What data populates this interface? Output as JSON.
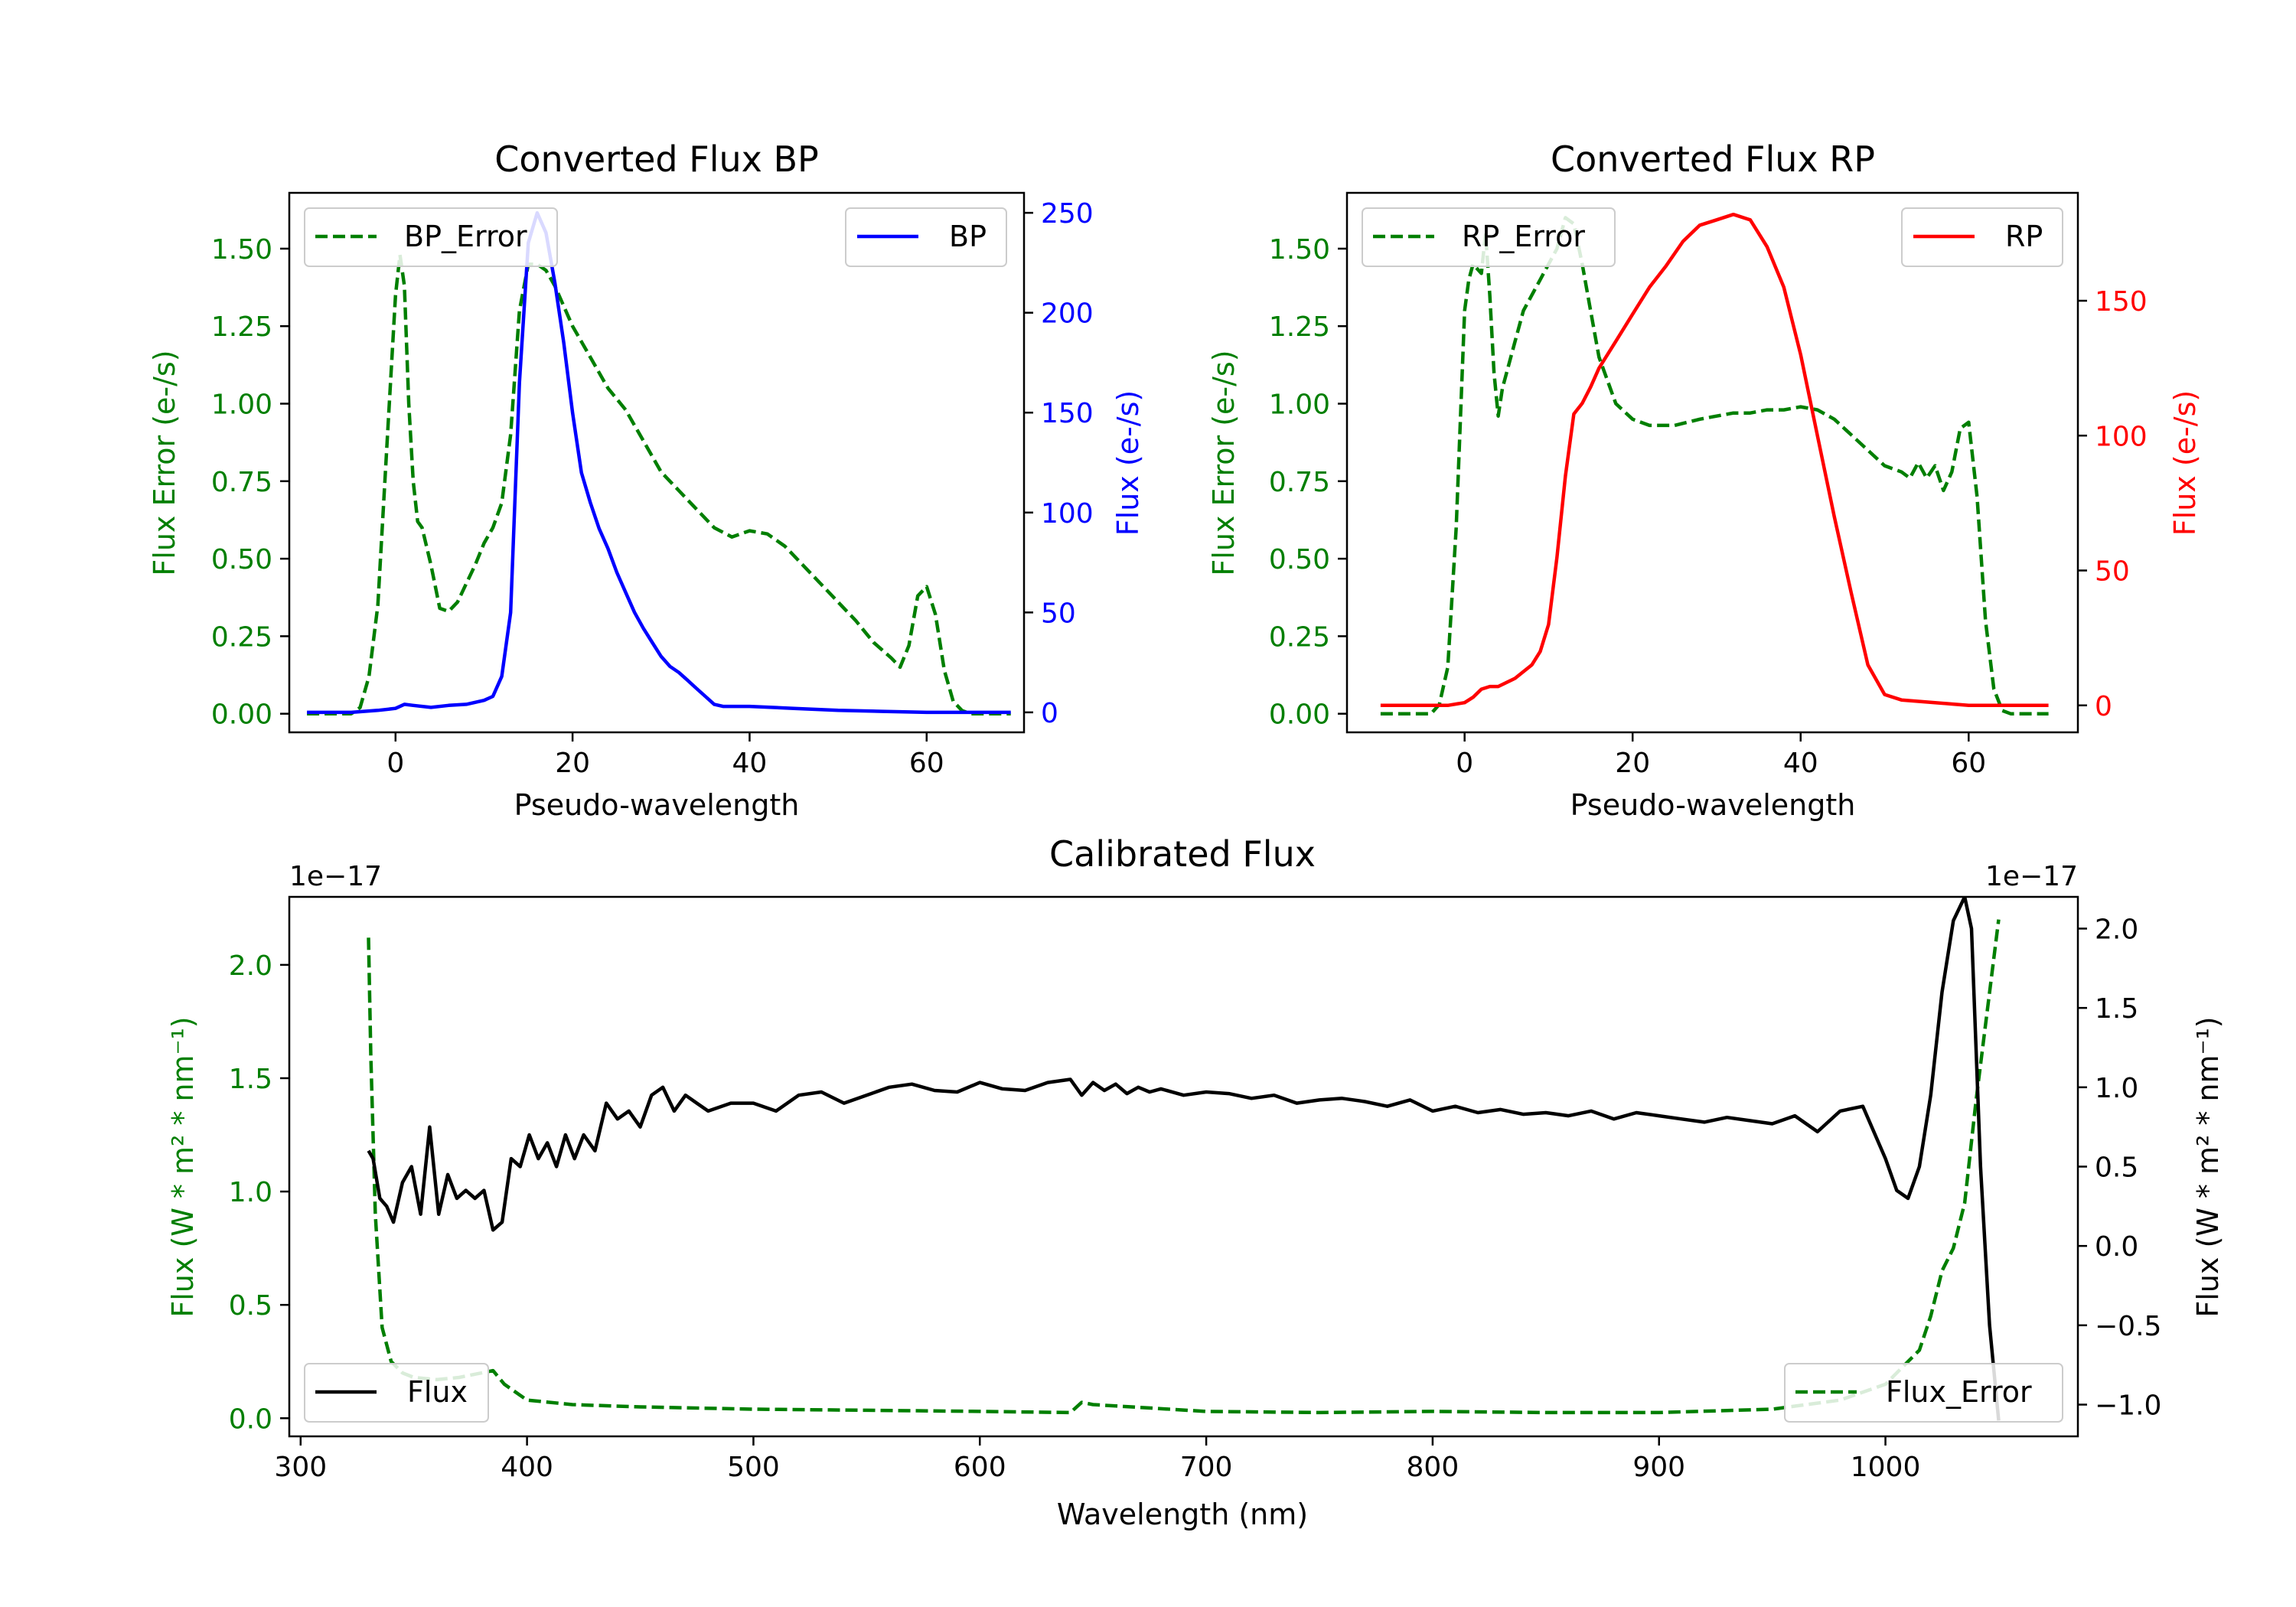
{
  "colors": {
    "green": "#007f00",
    "blue": "#0000ff",
    "red": "#ff0000",
    "black": "#000000"
  },
  "chart_data": [
    {
      "id": "bp",
      "type": "line",
      "title": "Converted Flux BP",
      "xlabel": "Pseudo-wavelength",
      "ylabel_left": "Flux Error (e-/s)",
      "ylabel_right": "Flux (e-/s)",
      "xlim": [
        -12,
        71
      ],
      "xticks": [
        0,
        20,
        40,
        60
      ],
      "ylim_left": [
        -0.06,
        1.68
      ],
      "yticks_left": [
        0.0,
        0.25,
        0.5,
        0.75,
        1.0,
        1.25,
        1.5
      ],
      "ytick_labels_left": [
        "0.00",
        "0.25",
        "0.50",
        "0.75",
        "1.00",
        "1.25",
        "1.50"
      ],
      "ylim_right": [
        -10,
        260
      ],
      "yticks_right": [
        0,
        50,
        100,
        150,
        200,
        250
      ],
      "ytick_labels_right": [
        "0",
        "50",
        "100",
        "150",
        "200",
        "250"
      ],
      "right_color": "blue",
      "legend_left": "BP_Error",
      "legend_right": "BP",
      "series": [
        {
          "name": "BP_Error",
          "axis": "left",
          "color": "green",
          "dash": true,
          "x": [
            -10,
            -5,
            -4,
            -3,
            -2,
            -1,
            0,
            0.5,
            1,
            1.5,
            2,
            2.5,
            3,
            4,
            5,
            6,
            7,
            8,
            9,
            10,
            11,
            12,
            13,
            14,
            15,
            16,
            17,
            18,
            20,
            22,
            24,
            26,
            28,
            30,
            32,
            34,
            36,
            38,
            40,
            42,
            44,
            46,
            48,
            50,
            52,
            54,
            56,
            57,
            58,
            59,
            60,
            61,
            62,
            63,
            64,
            65,
            67,
            69.5
          ],
          "y": [
            0.0,
            0.0,
            0.02,
            0.12,
            0.35,
            0.85,
            1.35,
            1.48,
            1.38,
            1.0,
            0.75,
            0.62,
            0.6,
            0.48,
            0.34,
            0.33,
            0.36,
            0.42,
            0.48,
            0.55,
            0.6,
            0.68,
            0.9,
            1.3,
            1.45,
            1.45,
            1.43,
            1.38,
            1.25,
            1.15,
            1.05,
            0.98,
            0.88,
            0.78,
            0.72,
            0.66,
            0.6,
            0.57,
            0.59,
            0.58,
            0.54,
            0.48,
            0.42,
            0.36,
            0.3,
            0.23,
            0.18,
            0.15,
            0.22,
            0.38,
            0.41,
            0.32,
            0.14,
            0.04,
            0.01,
            0.0,
            0.0,
            0.0
          ]
        },
        {
          "name": "BP",
          "axis": "right",
          "color": "blue",
          "dash": false,
          "x": [
            -10,
            -5,
            -2,
            0,
            1,
            2,
            4,
            6,
            8,
            10,
            11,
            12,
            13,
            14,
            15,
            16,
            17,
            18,
            19,
            20,
            21,
            22,
            23,
            24,
            25,
            26,
            27,
            28,
            29,
            30,
            31,
            32,
            33,
            34,
            35,
            36,
            37,
            40,
            45,
            50,
            55,
            60,
            65,
            69.5
          ],
          "y": [
            0,
            0,
            1,
            2,
            4,
            3.5,
            2.5,
            3.5,
            4,
            6,
            8,
            18,
            50,
            165,
            235,
            250,
            240,
            215,
            185,
            150,
            120,
            105,
            92,
            82,
            70,
            60,
            50,
            42,
            35,
            28,
            23,
            20,
            16,
            12,
            8,
            4,
            3,
            3,
            2,
            1,
            0.5,
            0,
            0,
            0
          ]
        }
      ]
    },
    {
      "id": "rp",
      "type": "line",
      "title": "Converted Flux RP",
      "xlabel": "Pseudo-wavelength",
      "ylabel_left": "Flux Error (e-/s)",
      "ylabel_right": "Flux (e-/s)",
      "xlim": [
        -14,
        73
      ],
      "xticks": [
        0,
        20,
        40,
        60
      ],
      "ylim_left": [
        -0.06,
        1.68
      ],
      "yticks_left": [
        0.0,
        0.25,
        0.5,
        0.75,
        1.0,
        1.25,
        1.5
      ],
      "ytick_labels_left": [
        "0.00",
        "0.25",
        "0.50",
        "0.75",
        "1.00",
        "1.25",
        "1.50"
      ],
      "ylim_right": [
        -10,
        190
      ],
      "yticks_right": [
        0,
        50,
        100,
        150
      ],
      "ytick_labels_right": [
        "0",
        "50",
        "100",
        "150"
      ],
      "right_color": "red",
      "legend_left": "RP_Error",
      "legend_right": "RP",
      "series": [
        {
          "name": "RP_Error",
          "axis": "left",
          "color": "green",
          "dash": true,
          "x": [
            -10,
            -4,
            -3,
            -2,
            -1,
            0,
            0.5,
            1,
            2,
            2.5,
            3,
            3.5,
            4,
            4.5,
            5,
            6,
            7,
            8,
            9,
            10,
            11,
            12,
            13,
            14,
            15,
            16,
            18,
            20,
            22,
            25,
            28,
            30,
            32,
            34,
            36,
            38,
            40,
            42,
            44,
            46,
            48,
            50,
            52,
            53,
            54,
            55,
            56,
            57,
            58,
            59,
            60,
            61,
            62,
            63,
            64,
            65,
            67,
            69.5
          ],
          "y": [
            0.0,
            0.0,
            0.03,
            0.15,
            0.6,
            1.3,
            1.4,
            1.45,
            1.42,
            1.55,
            1.35,
            1.1,
            0.96,
            1.05,
            1.1,
            1.2,
            1.3,
            1.35,
            1.4,
            1.45,
            1.5,
            1.6,
            1.58,
            1.45,
            1.3,
            1.15,
            1.0,
            0.95,
            0.93,
            0.93,
            0.95,
            0.96,
            0.97,
            0.97,
            0.98,
            0.98,
            0.99,
            0.98,
            0.95,
            0.9,
            0.85,
            0.8,
            0.78,
            0.76,
            0.81,
            0.76,
            0.8,
            0.72,
            0.78,
            0.92,
            0.94,
            0.7,
            0.3,
            0.08,
            0.01,
            0.0,
            0.0,
            0.0
          ]
        },
        {
          "name": "RP",
          "axis": "right",
          "color": "red",
          "dash": false,
          "x": [
            -10,
            -5,
            -2,
            0,
            1,
            2,
            3,
            4,
            6,
            8,
            9,
            10,
            11,
            12,
            13,
            14,
            15,
            16,
            18,
            20,
            22,
            24,
            26,
            28,
            30,
            32,
            34,
            36,
            38,
            40,
            42,
            44,
            46,
            48,
            50,
            52,
            54,
            56,
            58,
            60,
            62,
            65,
            69.5
          ],
          "y": [
            0,
            0,
            0,
            1,
            3,
            6,
            7,
            7,
            10,
            15,
            20,
            30,
            55,
            85,
            108,
            112,
            118,
            125,
            135,
            145,
            155,
            163,
            172,
            178,
            180,
            182,
            180,
            170,
            155,
            130,
            100,
            70,
            42,
            15,
            4,
            2,
            1.5,
            1,
            0.5,
            0,
            0,
            0,
            0
          ]
        }
      ]
    },
    {
      "id": "cal",
      "type": "line",
      "title": "Calibrated Flux",
      "xlabel": "Wavelength (nm)",
      "ylabel_left": "Flux (W * m² * nm⁻¹)",
      "ylabel_right": "Flux (W * m² * nm⁻¹)",
      "offset_left": "1e−17",
      "offset_right": "1e−17",
      "xlim": [
        295,
        1085
      ],
      "xticks": [
        300,
        400,
        500,
        600,
        700,
        800,
        900,
        1000
      ],
      "ylim_left": [
        -0.08,
        2.3
      ],
      "yticks_left": [
        0.0,
        0.5,
        1.0,
        1.5,
        2.0
      ],
      "ytick_labels_left": [
        "0.0",
        "0.5",
        "1.0",
        "1.5",
        "2.0"
      ],
      "ylim_right": [
        -1.2,
        2.2
      ],
      "yticks_right": [
        -1.0,
        -0.5,
        0.0,
        0.5,
        1.0,
        1.5,
        2.0
      ],
      "ytick_labels_right": [
        "−1.0",
        "−0.5",
        "0.0",
        "0.5",
        "1.0",
        "1.5",
        "2.0"
      ],
      "right_color": "black",
      "legend_left": "Flux",
      "legend_right": "Flux_Error",
      "series": [
        {
          "name": "Flux_Error",
          "axis": "left",
          "color": "green",
          "dash": true,
          "x": [
            330,
            331,
            333,
            336,
            340,
            345,
            350,
            360,
            370,
            380,
            385,
            390,
            400,
            420,
            450,
            500,
            550,
            600,
            640,
            645,
            650,
            700,
            750,
            800,
            850,
            900,
            950,
            980,
            1000,
            1010,
            1015,
            1020,
            1025,
            1030,
            1035,
            1040,
            1045,
            1050
          ],
          "y": [
            2.12,
            1.6,
            0.9,
            0.4,
            0.25,
            0.2,
            0.18,
            0.17,
            0.18,
            0.2,
            0.21,
            0.15,
            0.08,
            0.06,
            0.05,
            0.04,
            0.035,
            0.03,
            0.025,
            0.07,
            0.06,
            0.03,
            0.025,
            0.03,
            0.025,
            0.025,
            0.04,
            0.08,
            0.15,
            0.25,
            0.3,
            0.45,
            0.65,
            0.75,
            0.95,
            1.4,
            1.8,
            2.2
          ]
        },
        {
          "name": "Flux",
          "axis": "right",
          "color": "black",
          "dash": false,
          "x": [
            330,
            332,
            335,
            338,
            341,
            345,
            349,
            353,
            357,
            361,
            365,
            369,
            373,
            377,
            381,
            385,
            389,
            393,
            397,
            401,
            405,
            409,
            413,
            417,
            421,
            425,
            430,
            435,
            440,
            445,
            450,
            455,
            460,
            465,
            470,
            475,
            480,
            490,
            500,
            510,
            520,
            530,
            540,
            550,
            560,
            570,
            580,
            590,
            600,
            610,
            620,
            630,
            640,
            645,
            650,
            655,
            660,
            665,
            670,
            675,
            680,
            690,
            700,
            710,
            720,
            730,
            740,
            750,
            760,
            770,
            780,
            790,
            800,
            810,
            820,
            830,
            840,
            850,
            860,
            870,
            880,
            890,
            900,
            910,
            920,
            930,
            940,
            950,
            960,
            970,
            980,
            990,
            1000,
            1005,
            1010,
            1015,
            1020,
            1025,
            1030,
            1035,
            1038,
            1042,
            1046,
            1050
          ],
          "y": [
            0.6,
            0.55,
            0.3,
            0.25,
            0.15,
            0.4,
            0.5,
            0.2,
            0.75,
            0.2,
            0.45,
            0.3,
            0.35,
            0.3,
            0.35,
            0.1,
            0.15,
            0.55,
            0.5,
            0.7,
            0.55,
            0.65,
            0.5,
            0.7,
            0.55,
            0.7,
            0.6,
            0.9,
            0.8,
            0.85,
            0.75,
            0.95,
            1.0,
            0.85,
            0.95,
            0.9,
            0.85,
            0.9,
            0.9,
            0.85,
            0.95,
            0.97,
            0.9,
            0.95,
            1.0,
            1.02,
            0.98,
            0.97,
            1.03,
            0.99,
            0.98,
            1.03,
            1.05,
            0.95,
            1.03,
            0.98,
            1.02,
            0.96,
            1.0,
            0.97,
            0.99,
            0.95,
            0.97,
            0.96,
            0.93,
            0.95,
            0.9,
            0.92,
            0.93,
            0.91,
            0.88,
            0.92,
            0.85,
            0.88,
            0.84,
            0.86,
            0.83,
            0.84,
            0.82,
            0.85,
            0.8,
            0.84,
            0.82,
            0.8,
            0.78,
            0.81,
            0.79,
            0.77,
            0.82,
            0.72,
            0.85,
            0.88,
            0.55,
            0.35,
            0.3,
            0.5,
            0.95,
            1.6,
            2.05,
            2.2,
            2.0,
            0.5,
            -0.5,
            -1.1
          ]
        }
      ]
    }
  ]
}
